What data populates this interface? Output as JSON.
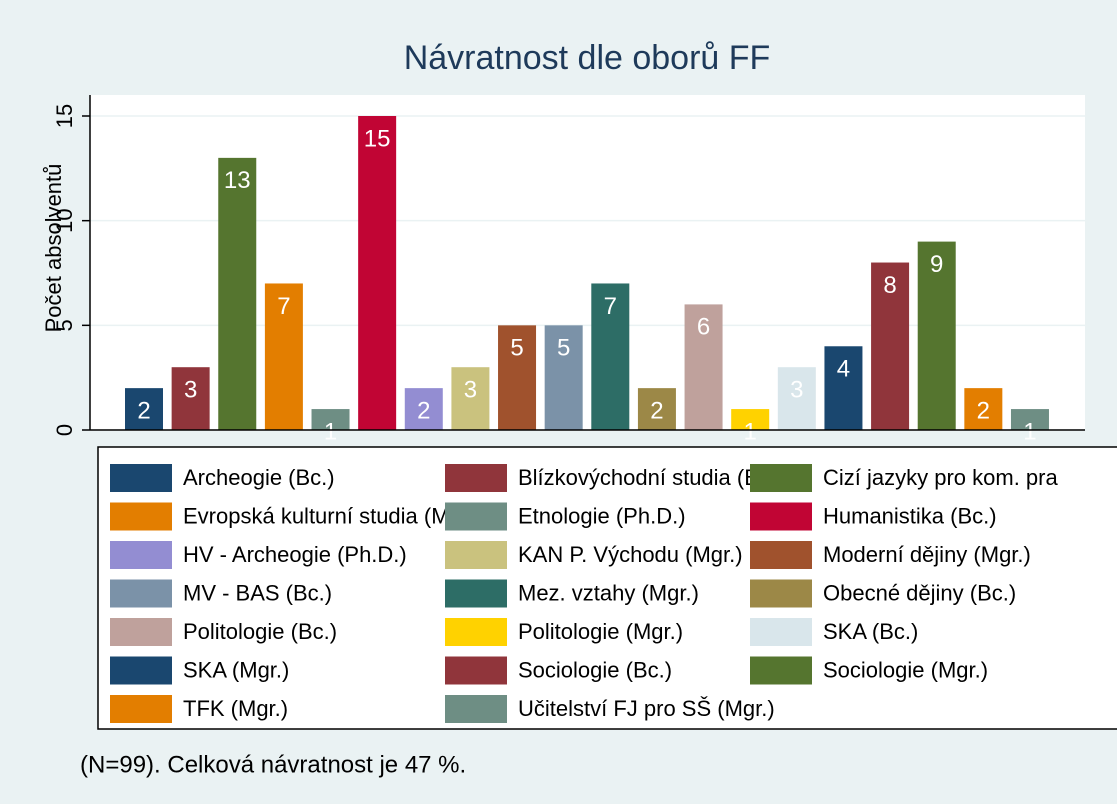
{
  "chart_data": {
    "type": "bar",
    "title": "Návratnost dle oborů FF",
    "y_label": "Počet absolventů",
    "note": "(N=99). Celková návratnost je 47 %.",
    "categories": [
      "Archeogie (Bc.)",
      "Blízkovýchodní studia (Bc.)",
      "Cizí jazyky pro kom. pra",
      "Evropská kulturní studia (Mgr.)",
      "Etnologie (Ph.D.)",
      "Humanistika (Bc.)",
      "HV - Archeogie (Ph.D.)",
      "KAN P. Východu (Mgr.)",
      "Moderní dějiny (Mgr.)",
      "MV - BAS (Bc.)",
      "Mez. vztahy (Mgr.)",
      "Obecné dějiny (Bc.)",
      "Politologie (Bc.)",
      "Politologie (Mgr.)",
      "SKA (Bc.)",
      "SKA (Mgr.)",
      "Sociologie (Bc.)",
      "Sociologie (Mgr.)",
      "TFK (Mgr.)",
      "Učitelství FJ pro SŠ (Mgr.)"
    ],
    "values": [
      2,
      3,
      13,
      7,
      1,
      15,
      2,
      3,
      5,
      5,
      7,
      2,
      6,
      1,
      3,
      4,
      8,
      9,
      2,
      1
    ],
    "colors": [
      "#1a476f",
      "#90353b",
      "#55752f",
      "#e37e00",
      "#6e8e84",
      "#c10534",
      "#938dd2",
      "#cac27e",
      "#a0522d",
      "#7b92a8",
      "#2d6d66",
      "#9c8847",
      "#bfa19c",
      "#ffd200",
      "#d9e6eb",
      "#1a476f",
      "#90353b",
      "#55752f",
      "#e37e00",
      "#6e8e84"
    ],
    "ylim": [
      0,
      15
    ],
    "yticks": [
      0,
      5,
      10,
      15
    ],
    "grid": true
  }
}
